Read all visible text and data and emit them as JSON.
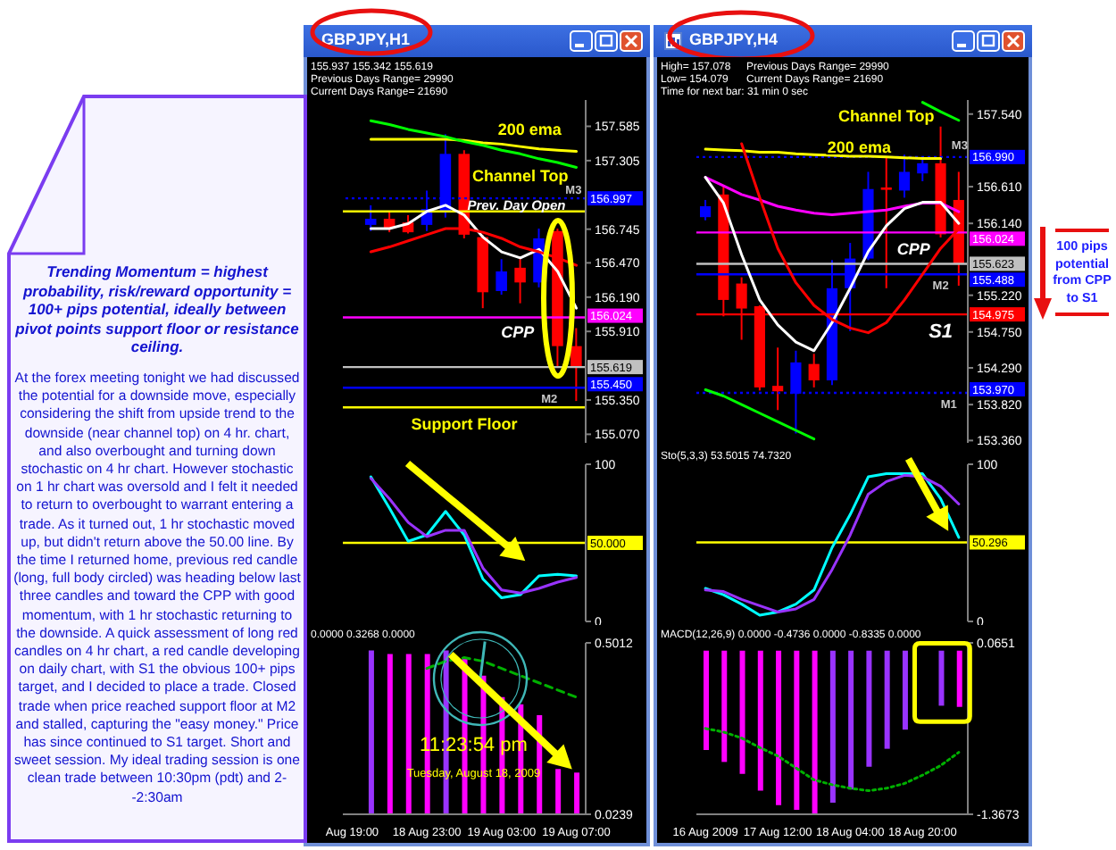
{
  "chart_data": [
    {
      "type": "other",
      "title": "Trending Momentum = highest probability, risk/reward opportunity = 100+ pips potential, ideally between pivot points support floor or resistance ceiling.",
      "annotations": [
        "At the forex meeting tonight we had discussed the potential for a downside move, especially considering the shift from upside trend to the downside (near channel top) on 4 hr. chart, and also overbought and turning down stochastic on 4 hr chart. However stochastic on 1 hr chart was oversold and I felt it needed to return to overbought to warrant entering a trade. As it turned out, 1 hr stochastic moved up, but didn't return above the 50.00 line. By the time I returned home, previous red candle (long, full body circled) was heading below last three candles and toward the CPP with good momentum, with 1 hr stochastic returning to the downside. A quick assessment of long red candles on 4 hr chart, a red candle developing on daily chart, with S1 the obvious 100+ pips target, and I decided to place a trade. Closed trade when price reached support floor at M2 and stalled, capturing the \"easy money.\" Price has since continued to S1 target. Short and sweet session. My ideal trading session is one clean trade between 10:30pm (pdt) and 2--2:30am"
      ]
    },
    {
      "type": "candlestick",
      "title": "GBPJPY,H1",
      "categories": [
        null,
        null,
        null,
        null,
        null,
        null,
        null,
        null,
        null,
        null,
        null,
        null,
        null
      ],
      "ohlc": [
        null,
        [
          156.78,
          156.94,
          156.73,
          156.83
        ],
        [
          156.83,
          156.89,
          156.72,
          156.75
        ],
        [
          156.8,
          156.86,
          156.71,
          156.72
        ],
        [
          156.78,
          157.06,
          156.73,
          156.91
        ],
        [
          156.89,
          157.52,
          156.84,
          157.36
        ],
        [
          157.36,
          157.39,
          156.67,
          156.7
        ],
        [
          156.68,
          156.7,
          156.1,
          156.23
        ],
        [
          156.24,
          156.5,
          156.21,
          156.4
        ],
        [
          156.43,
          156.5,
          156.14,
          156.31
        ],
        [
          156.31,
          156.75,
          156.27,
          156.67
        ],
        [
          156.73,
          156.75,
          155.62,
          155.79
        ],
        [
          155.79,
          155.937,
          155.342,
          155.619
        ]
      ],
      "colors": [
        null,
        "#0000ff",
        "#ff0000",
        "#ff0000",
        "#0000ff",
        "#0000ff",
        "#ff0000",
        "#ff0000",
        "#0000ff",
        "#ff0000",
        "#0000ff",
        "#ff0000",
        "#ff0000"
      ],
      "series": [
        {
          "type": "line",
          "color": "#ffff00",
          "values": [
            null,
            157.48,
            157.48,
            157.48,
            157.48,
            157.48,
            157.47,
            157.45,
            157.44,
            157.42,
            157.4,
            157.39,
            157.38
          ]
        },
        {
          "type": "line",
          "color": "#00ff00",
          "values": [
            null,
            157.63,
            157.6,
            157.56,
            157.53,
            157.5,
            157.46,
            157.43,
            157.39,
            157.36,
            157.32,
            157.29,
            157.25
          ]
        },
        {
          "type": "line",
          "color": "#ffffff",
          "values": [
            null,
            156.75,
            156.75,
            156.79,
            156.89,
            156.94,
            156.86,
            156.68,
            156.56,
            156.51,
            156.58,
            156.4,
            156.1
          ]
        },
        {
          "type": "line",
          "color": "#ff0000",
          "values": [
            null,
            156.56,
            156.6,
            156.65,
            156.7,
            156.75,
            156.75,
            156.72,
            156.67,
            156.6,
            156.56,
            156.51,
            156.45
          ]
        }
      ],
      "ylim": [
        155.0,
        157.8
      ],
      "yticks": [
        157.585,
        157.305,
        156.745,
        {
          "value": 156.47,
          "label": "156.470"
        },
        {
          "value": 156.19,
          "label": "156.190"
        },
        {
          "value": 155.91,
          "label": "155.910"
        },
        {
          "value": 155.35,
          "label": "155.350"
        },
        {
          "value": 155.07,
          "label": "155.070"
        }
      ],
      "tick_labels": "y",
      "ref_lines": [
        {
          "axis": "y",
          "value": 156.997,
          "label": "156.997",
          "color": "#0000ff",
          "line_style": "dotted"
        },
        {
          "axis": "y",
          "value": 156.89,
          "color": "#ffff00"
        },
        {
          "axis": "y",
          "value": 156.024,
          "label": "156.024",
          "color": "#ff00ff"
        },
        {
          "axis": "y",
          "value": 155.619,
          "label": "155.619",
          "color": "#c0c0c0"
        },
        {
          "axis": "y",
          "value": 155.45,
          "label": "155.450",
          "color": "#0000ff"
        },
        {
          "axis": "y",
          "value": 155.29,
          "color": "#ffff00"
        }
      ],
      "annotations": [
        "155.937 155.342 155.619",
        "Previous Days Range= 29990",
        "Current Days Range= 21690",
        "200 ema",
        "Channel Top",
        {
          "text": "M3",
          "y": 156.997
        },
        {
          "text": "Prev. Day Open",
          "y": 156.89
        },
        {
          "text": "CPP",
          "y": 156.024
        },
        {
          "text": "M2",
          "y": 155.45
        },
        {
          "text": "Support Floor",
          "y": 155.29
        }
      ]
    },
    {
      "type": "line",
      "categories": [
        null,
        null,
        null,
        null,
        null,
        null,
        null,
        null,
        null,
        null,
        null,
        null,
        null
      ],
      "series": [
        {
          "type": "line",
          "color": "#00ffff",
          "values": [
            null,
            92,
            72,
            51,
            55,
            70,
            55,
            27,
            15,
            17,
            29,
            30,
            29
          ]
        },
        {
          "type": "line",
          "color": "#9933ff",
          "values": [
            null,
            91,
            78,
            63,
            54,
            58,
            58,
            34,
            20,
            18,
            21,
            25,
            28
          ]
        }
      ],
      "ylim": [
        0,
        100
      ],
      "yticks": [
        0,
        100
      ],
      "tick_labels": "y",
      "ref_lines": [
        {
          "axis": "y",
          "value": 50,
          "label": "50.000",
          "color": "#ffff00"
        }
      ]
    },
    {
      "type": "bar",
      "title": "0.0000 0.3268 0.0000",
      "categories": [
        "Aug 19:00",
        null,
        null,
        null,
        "18 Aug 23:00",
        null,
        null,
        null,
        "19 Aug 03:00",
        null,
        null,
        null,
        "19 Aug 07:00"
      ],
      "series": [
        {
          "type": "bar",
          "colors": [
            null,
            "#9933ff",
            "#ff00ff",
            "#ff00ff",
            "#ff00ff",
            "#9933ff",
            "#ff00ff",
            "#ff00ff",
            "#ff00ff",
            "#ff00ff",
            "#ff00ff",
            "#ff00ff",
            "#ff00ff"
          ],
          "values": [
            null,
            0.48,
            0.47,
            0.47,
            0.47,
            0.48,
            0.46,
            0.41,
            0.35,
            0.33,
            0.3,
            0.15,
            0.14
          ]
        },
        {
          "type": "line",
          "color": "#00b000",
          "line_style": "dashed",
          "values": [
            null,
            null,
            null,
            null,
            0.43,
            0.45,
            0.46,
            0.45,
            0.43,
            0.41,
            0.39,
            0.37,
            0.35
          ]
        }
      ],
      "ylim": [
        0.0239,
        0.5012
      ],
      "yticks": [
        0.0239,
        0.5012
      ],
      "annotations": [
        "11:23:54 pm",
        "Tuesday, August 18, 2009"
      ]
    },
    {
      "type": "candlestick",
      "title": "GBPJPY,H4",
      "categories": [
        null,
        null,
        null,
        null,
        null,
        null,
        null,
        null,
        null,
        null,
        null,
        null,
        null,
        null,
        null
      ],
      "ohlc": [
        [
          156.22,
          156.44,
          156.18,
          156.36
        ],
        [
          156.51,
          156.62,
          154.95,
          155.16
        ],
        [
          155.37,
          155.45,
          154.65,
          155.05
        ],
        [
          155.08,
          155.09,
          154.0,
          154.04
        ],
        [
          154.06,
          154.55,
          153.75,
          153.99
        ],
        [
          153.96,
          154.51,
          153.45,
          154.36
        ],
        [
          154.34,
          154.47,
          154.04,
          154.13
        ],
        [
          154.13,
          155.67,
          154.07,
          155.31
        ],
        [
          155.31,
          155.89,
          154.76,
          155.69
        ],
        [
          155.69,
          156.8,
          155.67,
          156.58
        ],
        [
          156.6,
          156.98,
          155.31,
          156.57
        ],
        [
          156.56,
          157.02,
          156.47,
          156.8
        ],
        [
          156.78,
          157.0,
          156.68,
          156.91
        ],
        [
          156.91,
          157.38,
          155.96,
          156.0
        ],
        [
          156.44,
          156.8,
          155.342,
          155.623
        ]
      ],
      "colors": [
        "#0000ff",
        "#ff0000",
        "#ff0000",
        "#ff0000",
        "#ff0000",
        "#0000ff",
        "#ff0000",
        "#0000ff",
        "#0000ff",
        "#0000ff",
        "#ff0000",
        "#0000ff",
        "#0000ff",
        "#ff0000",
        "#ff0000"
      ],
      "series": [
        {
          "type": "line",
          "color": "#ffff00",
          "values": [
            157.09,
            157.08,
            157.07,
            157.05,
            157.05,
            157.03,
            157.02,
            157.01,
            157.0,
            157.0,
            156.99,
            156.98,
            156.97,
            156.97,
            null
          ]
        },
        {
          "type": "line",
          "color": "#00ff00",
          "values": [
            null,
            null,
            null,
            null,
            null,
            null,
            null,
            null,
            null,
            null,
            null,
            null,
            157.69,
            157.57,
            157.46
          ]
        },
        {
          "type": "line",
          "color": "#00ff00",
          "values": [
            154.01,
            153.93,
            153.82,
            153.71,
            153.6,
            153.49,
            153.38,
            null,
            null,
            null,
            null,
            null,
            null,
            null,
            null
          ]
        },
        {
          "type": "line",
          "color": "#ff00ff",
          "values": [
            156.73,
            156.62,
            156.51,
            156.44,
            156.36,
            156.31,
            156.27,
            156.25,
            156.27,
            156.29,
            156.31,
            156.36,
            156.4,
            156.4,
            156.29
          ]
        },
        {
          "type": "line",
          "color": "#ffffff",
          "values": [
            156.73,
            156.4,
            155.74,
            155.16,
            154.84,
            154.62,
            154.51,
            154.87,
            155.31,
            155.78,
            156.11,
            156.33,
            156.41,
            156.41,
            156.14
          ]
        },
        {
          "type": "line",
          "color": "#ff0000",
          "values": [
            null,
            null,
            157.16,
            156.47,
            155.82,
            155.38,
            155.09,
            154.91,
            154.8,
            154.74,
            154.87,
            155.16,
            155.49,
            155.82,
            156.07
          ]
        }
      ],
      "ylim": [
        153.33,
        157.72
      ],
      "yticks": [
        {
          "value": 157.54,
          "label": "157.540"
        },
        {
          "value": 156.61,
          "label": "156.610"
        },
        {
          "value": 156.14,
          "label": "156.140"
        },
        {
          "value": 155.22,
          "label": "155.220"
        },
        {
          "value": 154.75,
          "label": "154.750"
        },
        {
          "value": 154.29,
          "label": "154.290"
        },
        {
          "value": 153.82,
          "label": "153.820"
        },
        {
          "value": 153.36,
          "label": "153.360"
        }
      ],
      "tick_labels": "y",
      "ref_lines": [
        {
          "axis": "y",
          "value": 156.99,
          "label": "156.990",
          "color": "#0000ff",
          "line_style": "dotted"
        },
        {
          "axis": "y",
          "value": 156.024,
          "label": "156.024",
          "color": "#ff00ff"
        },
        {
          "axis": "y",
          "value": 155.623,
          "label": "155.623",
          "color": "#c0c0c0"
        },
        {
          "axis": "y",
          "value": 155.488,
          "label": "155.488",
          "color": "#0000ff"
        },
        {
          "axis": "y",
          "value": 154.975,
          "label": "154.975",
          "color": "#ff0000"
        },
        {
          "axis": "y",
          "value": 153.97,
          "label": "153.970",
          "color": "#0000ff",
          "line_style": "dotted"
        }
      ],
      "annotations": [
        "High= 157.078",
        "Previous Days Range= 29990",
        "Low= 154.079",
        "Current Days Range= 21690",
        "Time for next bar: 31 min 0 sec",
        "Channel Top",
        "200 ema",
        {
          "text": "M3",
          "y": 156.99
        },
        {
          "text": "CPP",
          "y": 156.024
        },
        {
          "text": "M2",
          "y": 155.488
        },
        {
          "text": "S1",
          "y": 154.975
        },
        {
          "text": "M1",
          "y": 153.97
        },
        "100 pips potential from CPP to S1"
      ]
    },
    {
      "type": "line",
      "title": "Sto(5,3,3) 53.5015 74.7320",
      "categories": [
        null,
        null,
        null,
        null,
        null,
        null,
        null,
        null,
        null,
        null,
        null,
        null,
        null,
        null,
        null
      ],
      "series": [
        {
          "type": "line",
          "color": "#00ffff",
          "values": [
            21,
            17,
            11,
            4,
            6,
            11,
            20,
            47,
            68,
            92,
            94,
            94,
            94,
            78,
            53.5015
          ]
        },
        {
          "type": "line",
          "color": "#9933ff",
          "values": [
            20,
            19,
            14,
            10,
            6,
            8,
            14,
            33,
            55,
            81,
            89,
            93,
            92,
            86,
            74.732
          ]
        }
      ],
      "ylim": [
        0,
        100
      ],
      "yticks": [
        0,
        100
      ],
      "tick_labels": "y",
      "ref_lines": [
        {
          "axis": "y",
          "value": 50.296,
          "label": "50.296",
          "color": "#ffff00"
        }
      ]
    },
    {
      "type": "bar",
      "title": "MACD(12,26,9) 0.0000 -0.4736 0.0000 -0.8335 0.0000",
      "categories": [
        "16 Aug 2009",
        null,
        null,
        null,
        "17 Aug 12:00",
        null,
        null,
        null,
        "18 Aug 04:00",
        null,
        null,
        null,
        "18 Aug 20:00",
        null,
        null
      ],
      "series": [
        {
          "type": "bar",
          "colors": [
            "#ff00ff",
            "#ff00ff",
            "#ff00ff",
            "#ff00ff",
            "#ff00ff",
            "#ff00ff",
            "#ff00ff",
            "#9933ff",
            "#9933ff",
            "#9933ff",
            "#9933ff",
            "#9933ff",
            null,
            "#9933ff",
            "#ff00ff"
          ],
          "values": [
            -0.83,
            -0.93,
            -1.03,
            -1.17,
            -1.29,
            -1.33,
            -1.36,
            -1.27,
            -1.16,
            -0.97,
            -0.82,
            -0.66,
            null,
            -0.46,
            -0.47
          ]
        },
        {
          "type": "line",
          "color": "#00b000",
          "line_style": "dotted",
          "values": [
            -0.65,
            -0.68,
            -0.73,
            -0.81,
            -0.88,
            -0.98,
            -1.08,
            -1.12,
            -1.15,
            -1.17,
            -1.15,
            -1.11,
            -1.04,
            -0.96,
            -0.85
          ]
        }
      ],
      "ylim": [
        -1.3673,
        0.0651
      ],
      "yticks": [
        {
          "value": -1.3673,
          "label": "-1.3673"
        },
        {
          "value": 0.0651,
          "label": "0.0651"
        }
      ]
    }
  ]
}
